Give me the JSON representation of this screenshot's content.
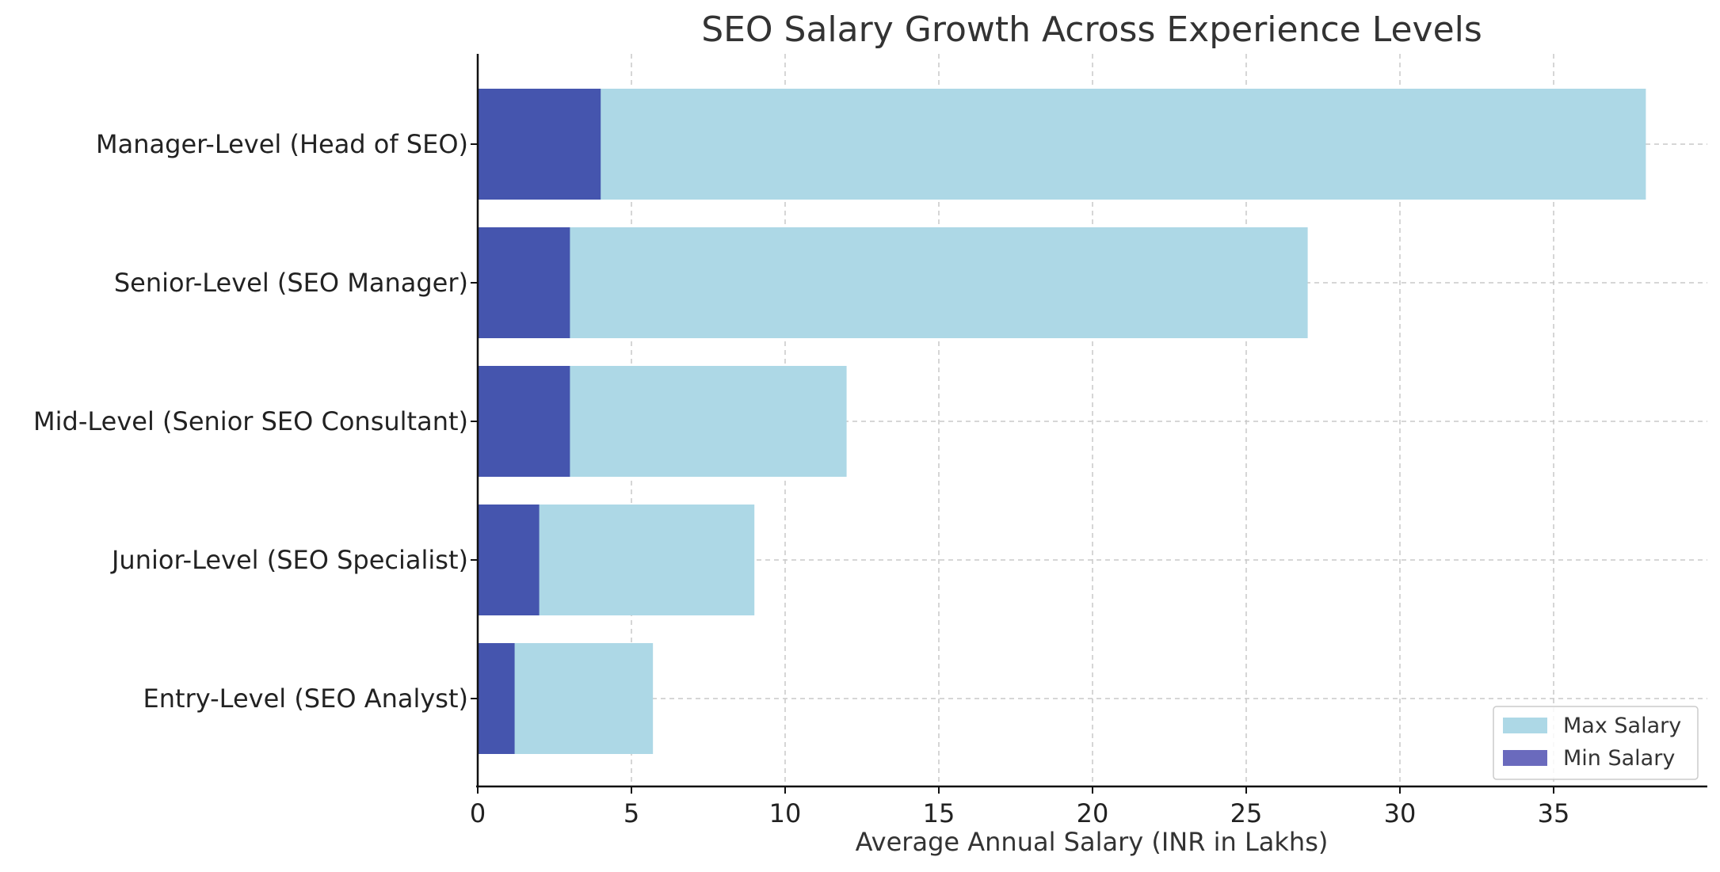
{
  "chart_data": {
    "type": "bar",
    "orientation": "horizontal",
    "stacking": "overlay",
    "title": "SEO Salary Growth Across Experience Levels",
    "xlabel": "Average Annual Salary (INR in Lakhs)",
    "ylabel": "",
    "xlim": [
      0,
      40
    ],
    "x_ticks": [
      0,
      5,
      10,
      15,
      20,
      25,
      30,
      35
    ],
    "grid": true,
    "legend_position": "bottom-right",
    "categories": [
      "Entry-Level (SEO Analyst)",
      "Junior-Level (SEO Specialist)",
      "Mid-Level (Senior SEO Consultant)",
      "Senior-Level (SEO Manager)",
      "Manager-Level (Head of SEO)"
    ],
    "series": [
      {
        "name": "Max Salary",
        "color": "#add8e6",
        "values": [
          5.7,
          9,
          12,
          27,
          38
        ]
      },
      {
        "name": "Min Salary",
        "color": "#4555ae",
        "values": [
          1.2,
          2,
          3,
          3,
          4
        ]
      }
    ],
    "legend_entries": [
      {
        "name": "Max Salary",
        "color": "#add8e6"
      },
      {
        "name": "Min Salary",
        "color": "#6a6abd"
      }
    ]
  }
}
